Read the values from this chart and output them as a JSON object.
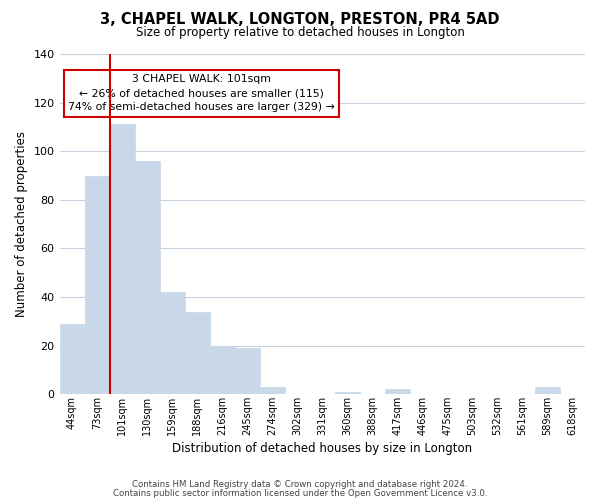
{
  "title": "3, CHAPEL WALK, LONGTON, PRESTON, PR4 5AD",
  "subtitle": "Size of property relative to detached houses in Longton",
  "xlabel": "Distribution of detached houses by size in Longton",
  "ylabel": "Number of detached properties",
  "bin_labels": [
    "44sqm",
    "73sqm",
    "101sqm",
    "130sqm",
    "159sqm",
    "188sqm",
    "216sqm",
    "245sqm",
    "274sqm",
    "302sqm",
    "331sqm",
    "360sqm",
    "388sqm",
    "417sqm",
    "446sqm",
    "475sqm",
    "503sqm",
    "532sqm",
    "561sqm",
    "589sqm",
    "618sqm"
  ],
  "bar_values": [
    29,
    90,
    111,
    96,
    42,
    34,
    20,
    19,
    3,
    0,
    0,
    1,
    0,
    2,
    0,
    0,
    0,
    0,
    0,
    3,
    0
  ],
  "bar_color": "#c8d8e8",
  "bar_edge_color": "#a0b8cc",
  "highlight_index": 2,
  "highlight_color": "#cc0000",
  "ylim": [
    0,
    140
  ],
  "yticks": [
    0,
    20,
    40,
    60,
    80,
    100,
    120,
    140
  ],
  "annotation_title": "3 CHAPEL WALK: 101sqm",
  "annotation_line1": "← 26% of detached houses are smaller (115)",
  "annotation_line2": "74% of semi-detached houses are larger (329) →",
  "footer_line1": "Contains HM Land Registry data © Crown copyright and database right 2024.",
  "footer_line2": "Contains public sector information licensed under the Open Government Licence v3.0.",
  "background_color": "#ffffff",
  "grid_color": "#c8d4e0"
}
